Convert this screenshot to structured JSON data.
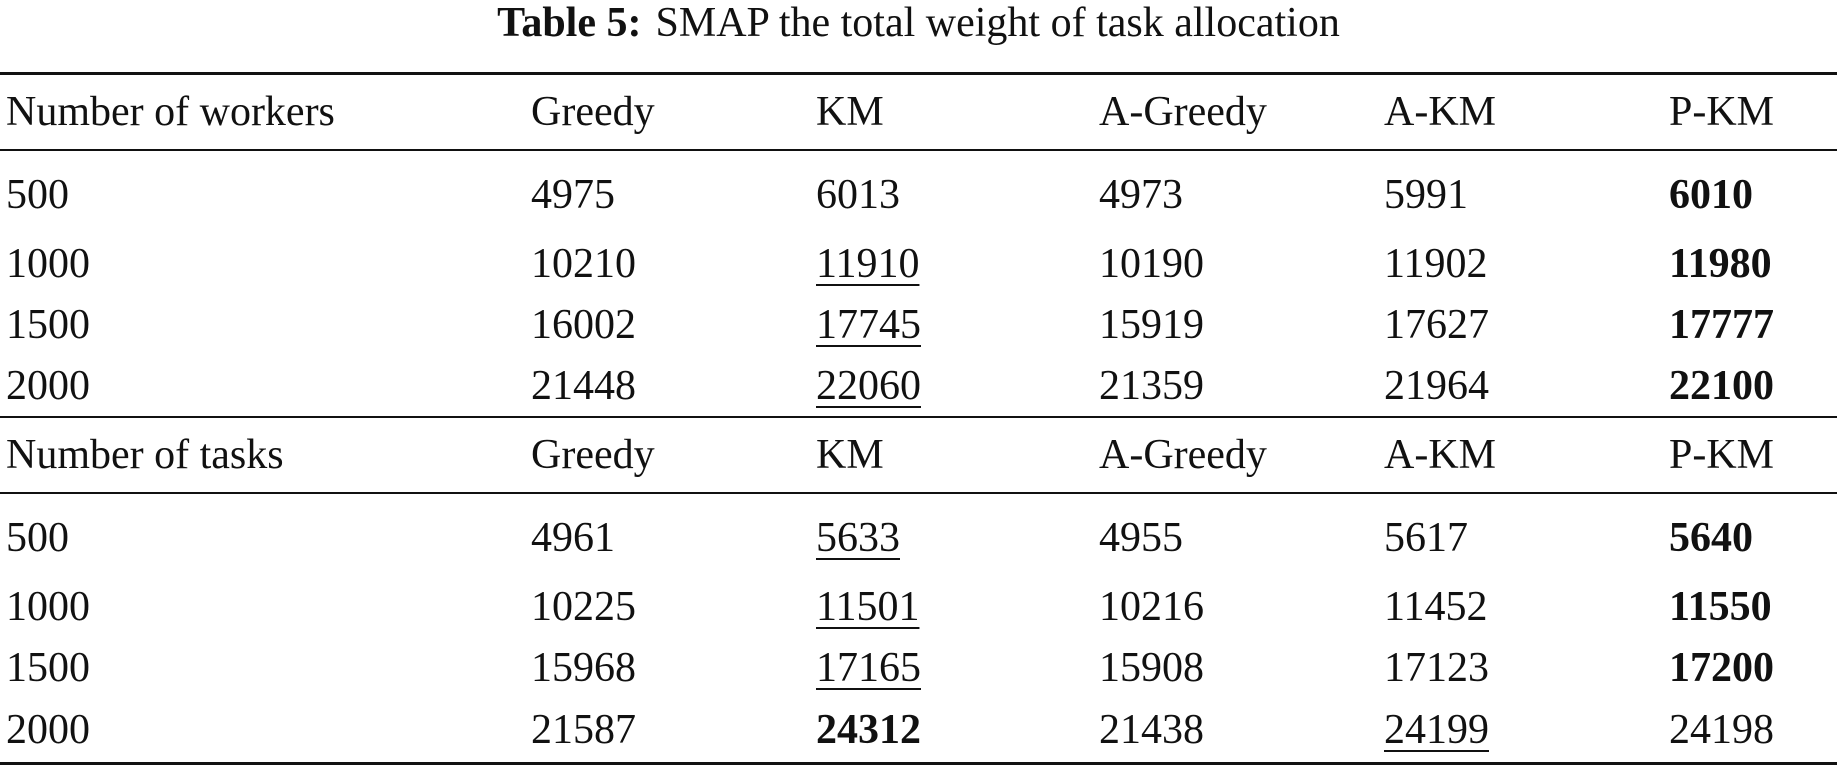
{
  "caption": {
    "label": "Table 5:",
    "text": "SMAP the total weight of task allocation"
  },
  "sections": [
    {
      "header": [
        "Number of workers",
        "Greedy",
        "KM",
        "A-Greedy",
        "A-KM",
        "P-KM"
      ],
      "rows": [
        [
          {
            "v": "500",
            "s": ""
          },
          {
            "v": "4975",
            "s": ""
          },
          {
            "v": "6013",
            "s": ""
          },
          {
            "v": "4973",
            "s": ""
          },
          {
            "v": "5991",
            "s": ""
          },
          {
            "v": "6010",
            "s": "bold"
          }
        ],
        [
          {
            "v": "1000",
            "s": ""
          },
          {
            "v": "10210",
            "s": ""
          },
          {
            "v": "11910",
            "s": "underline"
          },
          {
            "v": "10190",
            "s": ""
          },
          {
            "v": "11902",
            "s": ""
          },
          {
            "v": "11980",
            "s": "bold"
          }
        ],
        [
          {
            "v": "1500",
            "s": ""
          },
          {
            "v": "16002",
            "s": ""
          },
          {
            "v": "17745",
            "s": "underline"
          },
          {
            "v": "15919",
            "s": ""
          },
          {
            "v": "17627",
            "s": ""
          },
          {
            "v": "17777",
            "s": "bold"
          }
        ],
        [
          {
            "v": "2000",
            "s": ""
          },
          {
            "v": "21448",
            "s": ""
          },
          {
            "v": "22060",
            "s": "underline"
          },
          {
            "v": "21359",
            "s": ""
          },
          {
            "v": "21964",
            "s": ""
          },
          {
            "v": "22100",
            "s": "bold"
          }
        ]
      ]
    },
    {
      "header": [
        "Number of tasks",
        "Greedy",
        "KM",
        "A-Greedy",
        "A-KM",
        "P-KM"
      ],
      "rows": [
        [
          {
            "v": "500",
            "s": ""
          },
          {
            "v": "4961",
            "s": ""
          },
          {
            "v": "5633",
            "s": "underline"
          },
          {
            "v": "4955",
            "s": ""
          },
          {
            "v": "5617",
            "s": ""
          },
          {
            "v": "5640",
            "s": "bold"
          }
        ],
        [
          {
            "v": "1000",
            "s": ""
          },
          {
            "v": "10225",
            "s": ""
          },
          {
            "v": "11501",
            "s": "underline"
          },
          {
            "v": "10216",
            "s": ""
          },
          {
            "v": "11452",
            "s": ""
          },
          {
            "v": "11550",
            "s": "bold"
          }
        ],
        [
          {
            "v": "1500",
            "s": ""
          },
          {
            "v": "15968",
            "s": ""
          },
          {
            "v": "17165",
            "s": "underline"
          },
          {
            "v": "15908",
            "s": ""
          },
          {
            "v": "17123",
            "s": ""
          },
          {
            "v": "17200",
            "s": "bold"
          }
        ],
        [
          {
            "v": "2000",
            "s": ""
          },
          {
            "v": "21587",
            "s": ""
          },
          {
            "v": "24312",
            "s": "bold"
          },
          {
            "v": "21438",
            "s": ""
          },
          {
            "v": "24199",
            "s": "underline"
          },
          {
            "v": "24198",
            "s": ""
          }
        ]
      ]
    }
  ]
}
